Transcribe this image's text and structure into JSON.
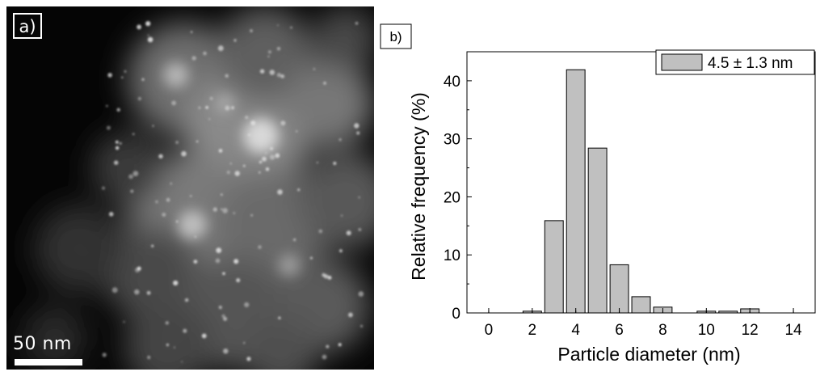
{
  "panel_a": {
    "label": "a)",
    "scale_bar_label": "50 nm"
  },
  "panel_b": {
    "label": "b)"
  },
  "chart_data": {
    "type": "bar",
    "title": "",
    "xlabel": "Particle diameter (nm)",
    "ylabel": "Relative frequency (%)",
    "xlim": [
      -1,
      15
    ],
    "ylim": [
      0,
      45
    ],
    "xticks": [
      0,
      2,
      4,
      6,
      8,
      10,
      12,
      14
    ],
    "yticks": [
      0,
      10,
      20,
      30,
      40
    ],
    "bar_width": 0.85,
    "x": [
      2,
      3,
      4,
      5,
      6,
      7,
      8,
      10,
      11,
      12
    ],
    "values": [
      0.3,
      15.9,
      41.9,
      28.4,
      8.3,
      2.8,
      1.0,
      0.3,
      0.3,
      0.7
    ],
    "series": [
      {
        "name": "4.5 ± 1.3 nm",
        "color": "#c0c0c0"
      }
    ],
    "legend_position": "top-right",
    "grid": false
  }
}
